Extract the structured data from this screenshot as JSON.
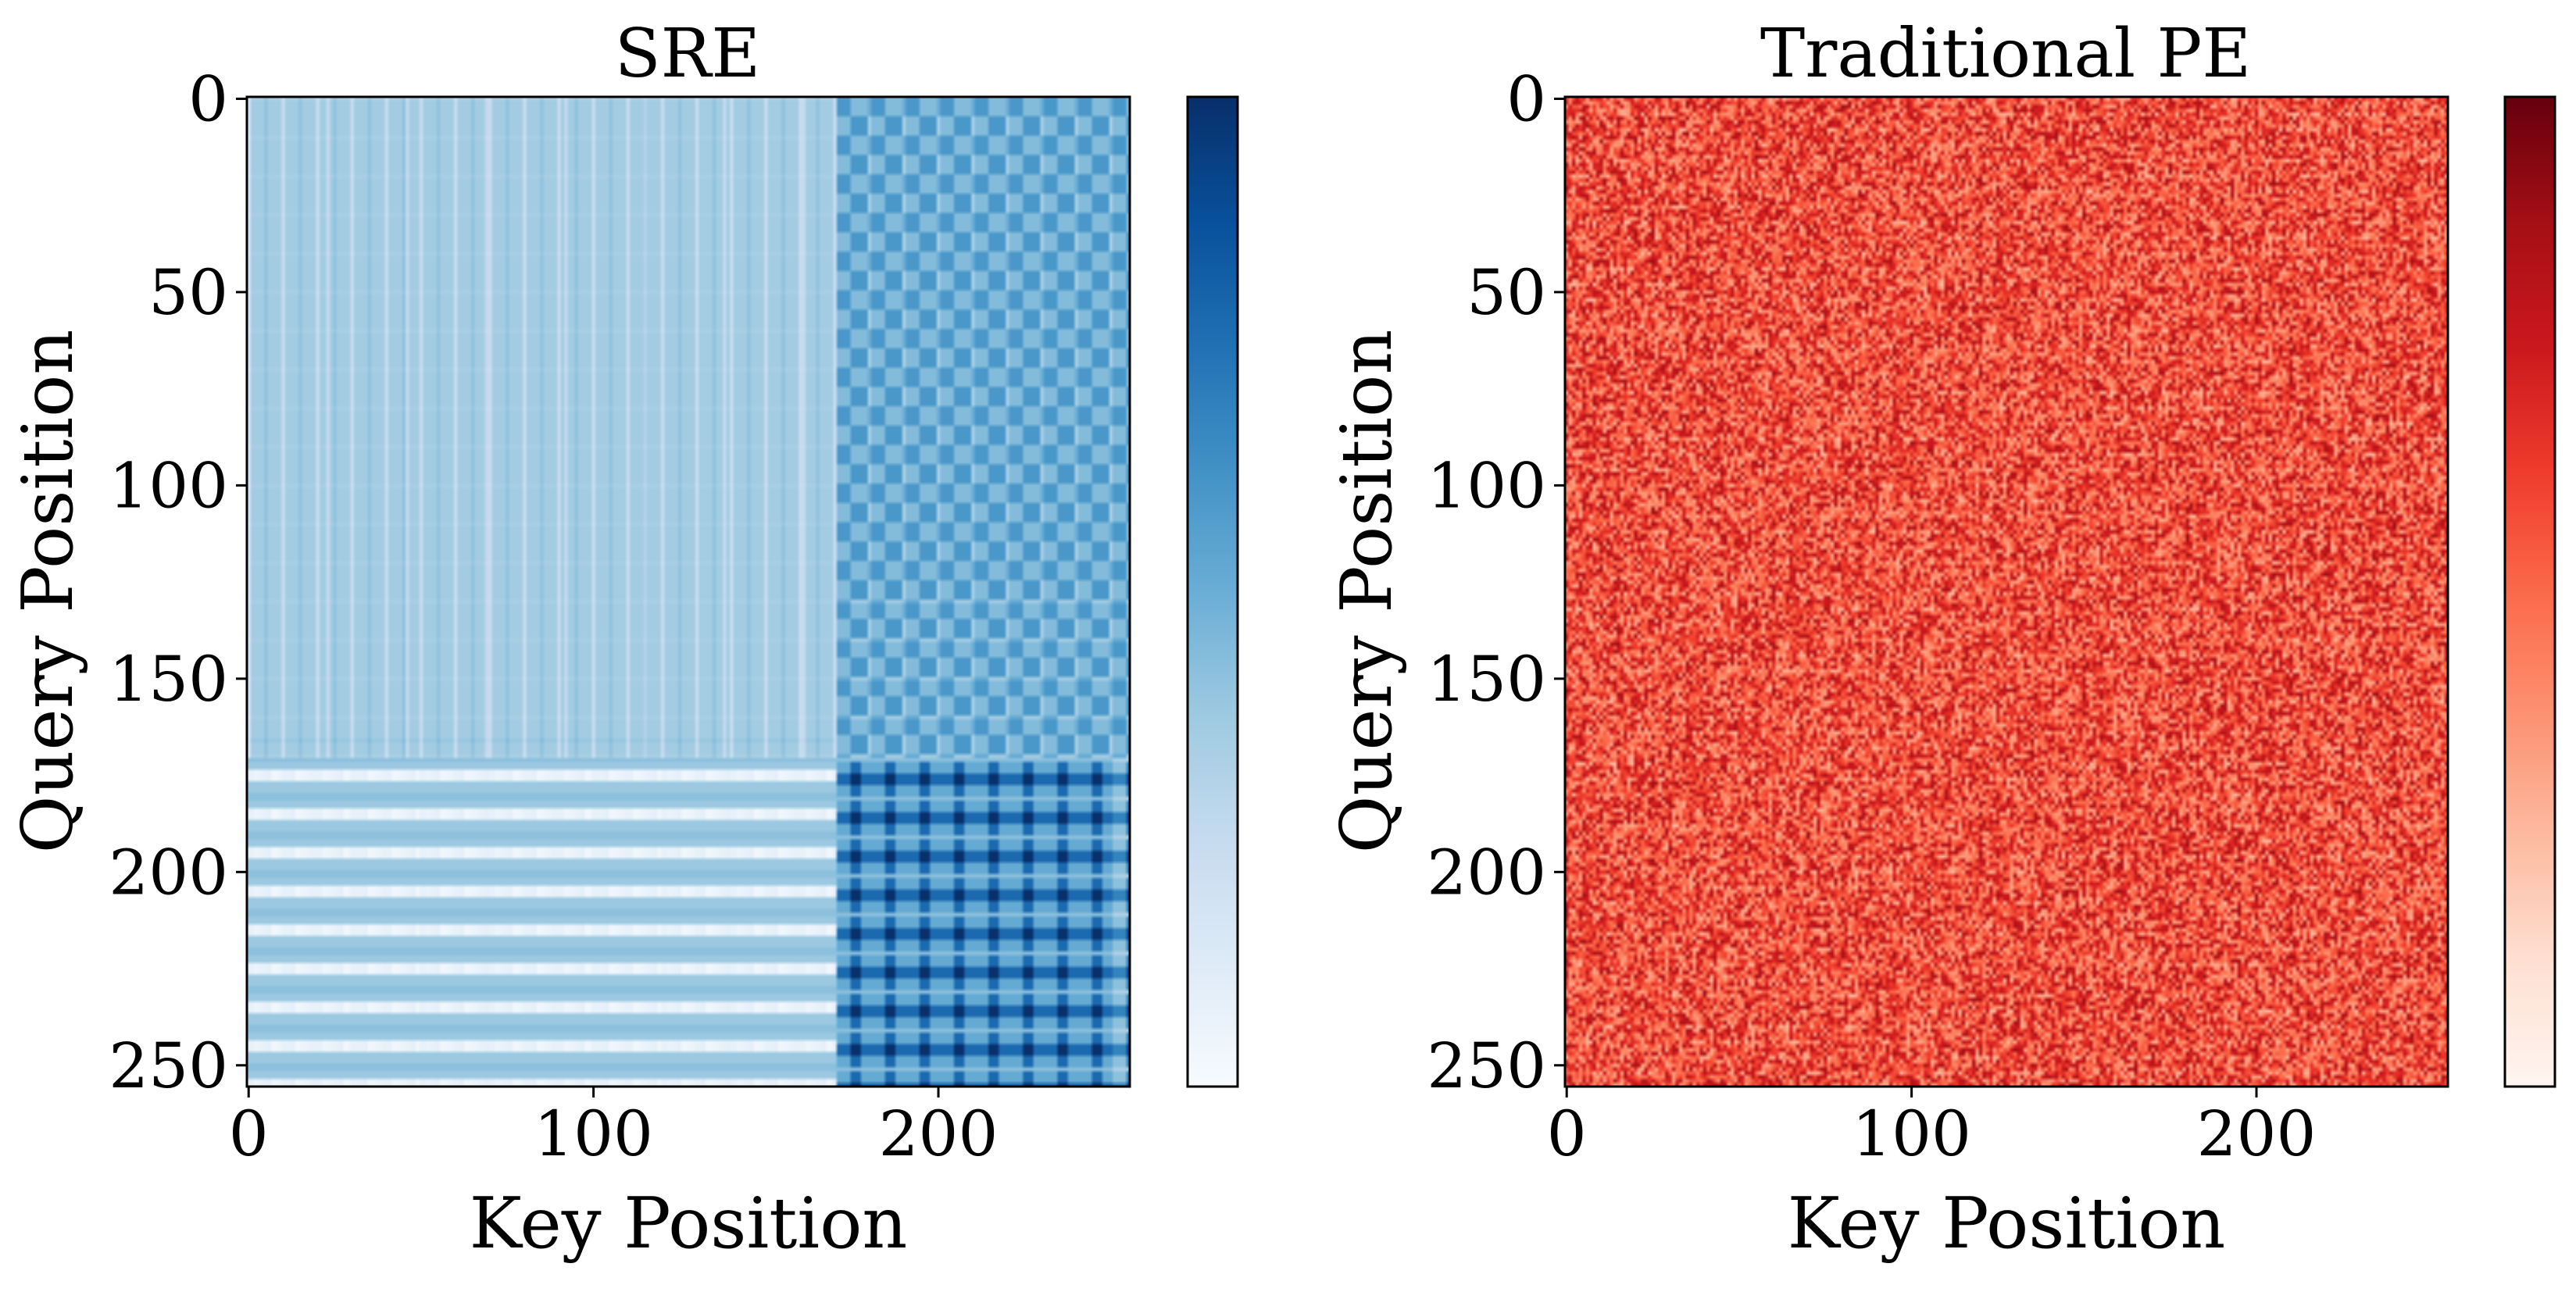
{
  "figure": {
    "background": "#ffffff"
  },
  "chart_data": [
    {
      "type": "heatmap",
      "title": "SRE",
      "xlabel": "Key Position",
      "ylabel": "Query Position",
      "size": 256,
      "xlim": [
        0,
        255
      ],
      "ylim": [
        255,
        0
      ],
      "xticks": [
        0,
        100,
        200
      ],
      "yticks": [
        0,
        50,
        100,
        150,
        200,
        250
      ],
      "colormap": "Blues",
      "colormap_stops": [
        "#f7fbff",
        "#deebf7",
        "#c6dbef",
        "#9ecae1",
        "#6baed6",
        "#4292c6",
        "#2171b5",
        "#08519c",
        "#08306b"
      ],
      "colorbar_ticks": [],
      "block_boundary": 171,
      "pattern": {
        "base_level": 0.36,
        "column_period": 10,
        "row_period": 10,
        "top_left": "light-blue vertical stripes",
        "top_right": "medium-blue checkerboard",
        "bottom_left": "white and light-blue horizontal bands",
        "bottom_right": "dark-blue checkerboard"
      }
    },
    {
      "type": "heatmap",
      "title": "Traditional PE",
      "xlabel": "Key Position",
      "ylabel": "Query Position",
      "size": 256,
      "xlim": [
        0,
        255
      ],
      "ylim": [
        255,
        0
      ],
      "xticks": [
        0,
        100,
        200
      ],
      "yticks": [
        0,
        50,
        100,
        150,
        200,
        250
      ],
      "colormap": "Reds",
      "colormap_stops": [
        "#fff5f0",
        "#fee0d2",
        "#fcbba1",
        "#fc9272",
        "#fb6a4a",
        "#ef3b2c",
        "#cb181d",
        "#a50f15",
        "#67000d"
      ],
      "colorbar_ticks": [],
      "pattern": {
        "base_level": 0.58,
        "noise": "random, roughly uniform with faint grid structure"
      }
    }
  ]
}
